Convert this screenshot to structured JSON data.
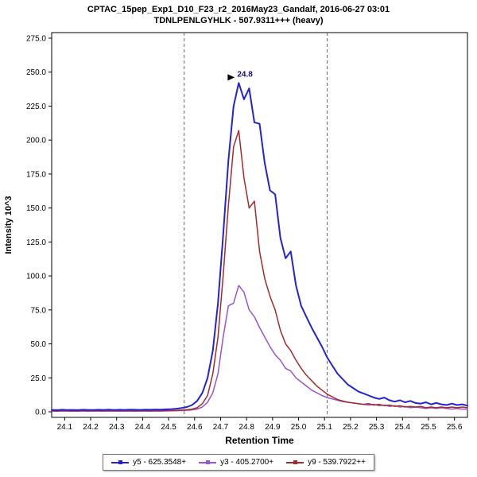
{
  "title": {
    "line1": "CPTAC_15pep_Exp1_D10_F23_r2_2016May23_Gandalf, 2016-06-27 03:01",
    "line2": "TDNLPENLGYHLK - 507.9311+++ (heavy)"
  },
  "chart_data": {
    "type": "line",
    "title": "CPTAC_15pep_Exp1_D10_F23_r2_2016May23_Gandalf, 2016-06-27 03:01",
    "subtitle": "TDNLPENLGYHLK - 507.9311+++ (heavy)",
    "xlabel": "Retention Time",
    "ylabel": "Intensity 10^3",
    "xlim": [
      24.05,
      25.65
    ],
    "ylim": [
      0,
      275
    ],
    "grid": false,
    "legend_position": "bottom",
    "x_ticks": [
      24.1,
      24.2,
      24.3,
      24.4,
      24.5,
      24.6,
      24.7,
      24.8,
      24.9,
      25.0,
      25.1,
      25.2,
      25.3,
      25.4,
      25.5,
      25.6
    ],
    "y_ticks": [
      0,
      25,
      50,
      75,
      100,
      125,
      150,
      175,
      200,
      225,
      250,
      275
    ],
    "boundaries": [
      24.56,
      25.11
    ],
    "annotation": {
      "text": "24.8",
      "x": 24.77,
      "y": 242
    },
    "draw_order": [
      1,
      2,
      0
    ],
    "x": [
      24.05,
      24.07,
      24.09,
      24.11,
      24.13,
      24.15,
      24.17,
      24.19,
      24.21,
      24.23,
      24.25,
      24.27,
      24.29,
      24.31,
      24.33,
      24.35,
      24.37,
      24.39,
      24.41,
      24.43,
      24.45,
      24.47,
      24.49,
      24.51,
      24.53,
      24.55,
      24.57,
      24.59,
      24.61,
      24.63,
      24.65,
      24.67,
      24.69,
      24.71,
      24.73,
      24.75,
      24.77,
      24.79,
      24.81,
      24.83,
      24.85,
      24.87,
      24.89,
      24.91,
      24.93,
      24.95,
      24.97,
      24.99,
      25.01,
      25.03,
      25.05,
      25.07,
      25.09,
      25.11,
      25.13,
      25.15,
      25.17,
      25.19,
      25.21,
      25.23,
      25.25,
      25.27,
      25.29,
      25.31,
      25.33,
      25.35,
      25.37,
      25.39,
      25.41,
      25.43,
      25.45,
      25.47,
      25.49,
      25.51,
      25.53,
      25.55,
      25.57,
      25.59,
      25.61,
      25.63,
      25.65
    ],
    "series": [
      {
        "name": "y5 - 625.3548+",
        "color": "#2323d2",
        "values": [
          1.4,
          1.2,
          1.5,
          1.3,
          1.4,
          1.2,
          1.5,
          1.4,
          1.3,
          1.5,
          1.4,
          1.6,
          1.3,
          1.5,
          1.4,
          1.6,
          1.5,
          1.4,
          1.6,
          1.5,
          1.7,
          1.6,
          1.8,
          2.0,
          2.3,
          2.8,
          3.5,
          5.0,
          8.0,
          14.0,
          25.0,
          45.0,
          80.0,
          130.0,
          185.0,
          225.0,
          242.0,
          230.0,
          238.0,
          213.0,
          212.0,
          183.0,
          163.0,
          160.0,
          128.0,
          113.0,
          118.0,
          93.0,
          78.0,
          70.0,
          62.0,
          55.0,
          48.0,
          40.0,
          34.0,
          28.0,
          24.0,
          20.0,
          17.5,
          15.0,
          13.5,
          12.0,
          10.5,
          9.5,
          10.5,
          8.5,
          7.5,
          8.5,
          7.0,
          8.0,
          6.5,
          6.0,
          7.0,
          5.5,
          6.5,
          5.5,
          5.0,
          6.0,
          5.0,
          5.5,
          4.5
        ]
      },
      {
        "name": "y3 - 405.2700+",
        "color": "#9655d2",
        "values": [
          0.5,
          0.4,
          0.6,
          0.5,
          0.4,
          0.6,
          0.5,
          0.4,
          0.6,
          0.5,
          0.4,
          0.6,
          0.5,
          0.4,
          0.6,
          0.5,
          0.4,
          0.6,
          0.5,
          0.4,
          0.6,
          0.5,
          0.6,
          0.7,
          0.8,
          0.9,
          1.1,
          1.4,
          2.0,
          3.5,
          7.0,
          14.0,
          28.0,
          55.0,
          78.0,
          80.0,
          93.0,
          88.0,
          75.0,
          70.0,
          62.0,
          55.0,
          48.0,
          42.0,
          38.0,
          32.0,
          30.0,
          25.0,
          22.0,
          19.0,
          16.0,
          14.0,
          12.0,
          10.5,
          9.5,
          8.5,
          7.5,
          7.0,
          6.5,
          6.0,
          5.5,
          5.0,
          5.5,
          4.5,
          5.0,
          4.0,
          4.5,
          3.5,
          4.0,
          3.0,
          3.5,
          3.0,
          2.5,
          3.0,
          2.5,
          3.0,
          2.5,
          2.0,
          2.5,
          2.0,
          2.0
        ]
      },
      {
        "name": "y9 - 539.7922++",
        "color": "#a52a2a",
        "values": [
          0.8,
          0.6,
          0.9,
          0.7,
          0.8,
          0.6,
          0.9,
          0.8,
          0.7,
          0.9,
          0.8,
          0.7,
          0.9,
          0.8,
          0.7,
          0.9,
          0.8,
          0.7,
          0.9,
          0.8,
          0.9,
          0.8,
          1.0,
          0.9,
          1.0,
          1.2,
          1.5,
          2.0,
          3.0,
          6.0,
          12.0,
          28.0,
          55.0,
          100.0,
          152.0,
          195.0,
          207.0,
          172.0,
          150.0,
          155.0,
          118.0,
          98.0,
          85.0,
          75.0,
          60.0,
          50.0,
          45.0,
          38.0,
          32.0,
          27.0,
          23.0,
          19.0,
          16.0,
          13.0,
          11.0,
          9.0,
          8.0,
          7.0,
          6.5,
          6.0,
          5.5,
          6.0,
          5.0,
          5.5,
          4.5,
          5.0,
          4.0,
          4.5,
          3.5,
          4.0,
          3.5,
          4.0,
          3.0,
          3.5,
          3.0,
          3.5,
          3.0,
          3.5,
          3.0,
          3.5,
          3.0
        ]
      }
    ],
    "colors": {
      "boundary_line": "#666666",
      "annotation_text": "#101088",
      "axis": "#000000"
    }
  }
}
